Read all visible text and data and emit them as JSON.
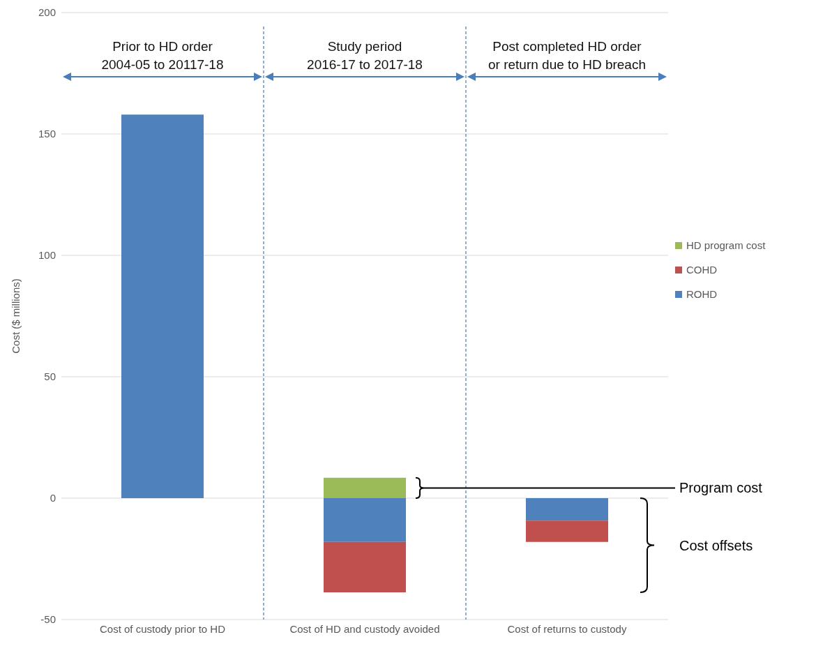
{
  "chart_data": {
    "type": "bar",
    "stacked": true,
    "ylabel": "Cost ($ millions)",
    "categories": [
      "Cost of custody prior to HD",
      "Cost of HD and custody avoided",
      "Cost of returns to custody"
    ],
    "series": [
      {
        "name": "ROHD",
        "color": "#4f81bd",
        "values": [
          158,
          -18,
          -9.3
        ]
      },
      {
        "name": "COHD",
        "color": "#c0504d",
        "values": [
          null,
          -20.8,
          -8.7
        ]
      },
      {
        "name": "HD program cost",
        "color": "#9bbb59",
        "values": [
          null,
          8.4,
          null
        ]
      }
    ],
    "ylim": [
      -50,
      200
    ],
    "yticks": [
      -50,
      0,
      50,
      100,
      150,
      200
    ],
    "grid": "y",
    "legend": "right",
    "annotations": [
      "Prior to HD order\n2004-05 to 20117-18",
      "Study period\n2016-17 to 2017-18",
      "Post completed HD order\nor return due to HD breach",
      "Program cost",
      "Cost offsets"
    ]
  }
}
